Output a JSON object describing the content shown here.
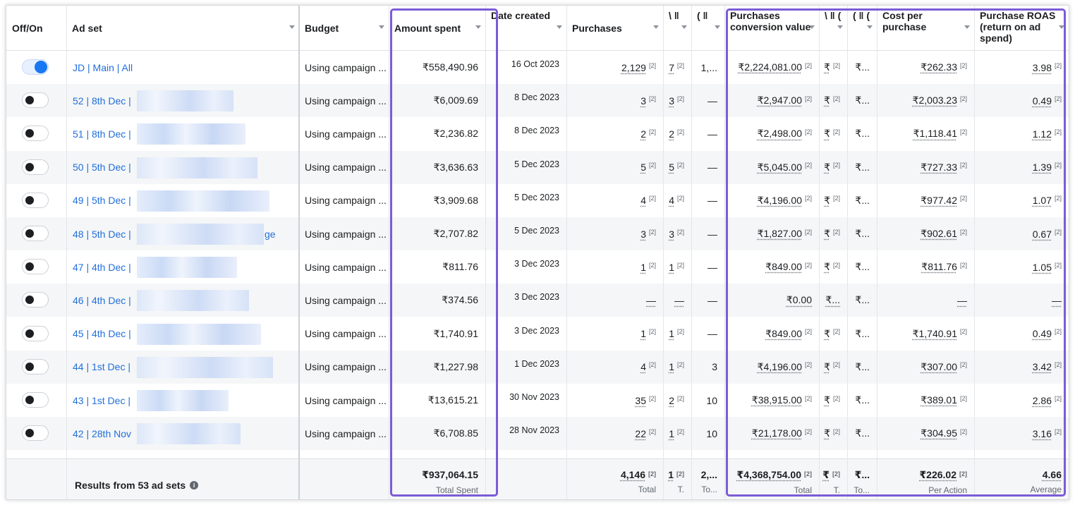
{
  "colors": {
    "accent": "#1877f2",
    "link": "#216fdb",
    "highlight": "#7b5cd6"
  },
  "headers": {
    "toggle": "Off/On",
    "ad_set": "Ad set",
    "budget": "Budget",
    "amount_spent": "Amount spent",
    "date_created": "Date created",
    "purchases": "Purchases",
    "col_a": "\\ ‖",
    "col_b": "( ‖",
    "pcv": "Purchases conversion value",
    "col_c": "\\ ‖ (",
    "col_d": "( ‖ (",
    "cpp": "Cost per purchase",
    "roas": "Purchase ROAS (return on ad spend)"
  },
  "rows": [
    {
      "on": true,
      "name": "JD | Main | All",
      "budget": "Using campaign ...",
      "spent": "₹558,490.96",
      "date": "16 Oct 2023",
      "purchases": "2,129",
      "a": "7",
      "b": "1,...",
      "pcv": "₹2,224,081.00",
      "c": "₹",
      "d": "₹...",
      "cpp": "₹262.33",
      "roas": "3.98"
    },
    {
      "on": false,
      "name": "52 | 8th Dec |",
      "budget": "Using campaign ...",
      "spent": "₹6,009.69",
      "date": "8 Dec 2023",
      "purchases": "3",
      "a": "3",
      "b": "—",
      "pcv": "₹2,947.00",
      "c": "₹",
      "d": "₹...",
      "cpp": "₹2,003.23",
      "roas": "0.49"
    },
    {
      "on": false,
      "name": "51 | 8th Dec |",
      "budget": "Using campaign ...",
      "spent": "₹2,236.82",
      "date": "8 Dec 2023",
      "purchases": "2",
      "a": "2",
      "b": "—",
      "pcv": "₹2,498.00",
      "c": "₹",
      "d": "₹...",
      "cpp": "₹1,118.41",
      "roas": "1.12"
    },
    {
      "on": false,
      "name": "50 | 5th Dec |",
      "budget": "Using campaign ...",
      "spent": "₹3,636.63",
      "date": "5 Dec 2023",
      "purchases": "5",
      "a": "5",
      "b": "—",
      "pcv": "₹5,045.00",
      "c": "₹",
      "d": "₹...",
      "cpp": "₹727.33",
      "roas": "1.39"
    },
    {
      "on": false,
      "name": "49 | 5th Dec |",
      "budget": "Using campaign ...",
      "spent": "₹3,909.68",
      "date": "5 Dec 2023",
      "purchases": "4",
      "a": "4",
      "b": "—",
      "pcv": "₹4,196.00",
      "c": "₹",
      "d": "₹...",
      "cpp": "₹977.42",
      "roas": "1.07"
    },
    {
      "on": false,
      "name": "48 | 5th Dec |",
      "suffix": "ge",
      "budget": "Using campaign ...",
      "spent": "₹2,707.82",
      "date": "5 Dec 2023",
      "purchases": "3",
      "a": "3",
      "b": "—",
      "pcv": "₹1,827.00",
      "c": "₹",
      "d": "₹...",
      "cpp": "₹902.61",
      "roas": "0.67"
    },
    {
      "on": false,
      "name": "47 | 4th Dec |",
      "budget": "Using campaign ...",
      "spent": "₹811.76",
      "date": "3 Dec 2023",
      "purchases": "1",
      "a": "1",
      "b": "—",
      "pcv": "₹849.00",
      "c": "₹",
      "d": "₹...",
      "cpp": "₹811.76",
      "roas": "1.05"
    },
    {
      "on": false,
      "name": "46 | 4th Dec |",
      "budget": "Using campaign ...",
      "spent": "₹374.56",
      "date": "3 Dec 2023",
      "purchases": "—",
      "a": "—",
      "b": "—",
      "pcv": "₹0.00",
      "c": "₹...",
      "d": "₹...",
      "cpp": "—",
      "roas": "—"
    },
    {
      "on": false,
      "name": "45 | 4th Dec |",
      "budget": "Using campaign ...",
      "spent": "₹1,740.91",
      "date": "3 Dec 2023",
      "purchases": "1",
      "a": "1",
      "b": "—",
      "pcv": "₹849.00",
      "c": "₹",
      "d": "₹...",
      "cpp": "₹1,740.91",
      "roas": "0.49"
    },
    {
      "on": false,
      "name": "44 | 1st Dec |",
      "budget": "Using campaign ...",
      "spent": "₹1,227.98",
      "date": "1 Dec 2023",
      "purchases": "4",
      "a": "1",
      "b": "3",
      "pcv": "₹4,196.00",
      "c": "₹",
      "d": "₹...",
      "cpp": "₹307.00",
      "roas": "3.42"
    },
    {
      "on": false,
      "name": "43 | 1st Dec |",
      "budget": "Using campaign ...",
      "spent": "₹13,615.21",
      "date": "30 Nov 2023",
      "purchases": "35",
      "a": "2",
      "b": "10",
      "pcv": "₹38,915.00",
      "c": "₹",
      "d": "₹...",
      "cpp": "₹389.01",
      "roas": "2.86"
    },
    {
      "on": false,
      "name": "42 | 28th Nov",
      "budget": "Using campaign ...",
      "spent": "₹6,708.85",
      "date": "28 Nov 2023",
      "purchases": "22",
      "a": "1",
      "b": "10",
      "pcv": "₹21,178.00",
      "c": "₹",
      "d": "₹...",
      "cpp": "₹304.95",
      "roas": "3.16"
    }
  ],
  "footnote": "[2]",
  "footer": {
    "label": "Results from 53 ad sets",
    "spent": "₹937,064.15",
    "spent_sub": "Total Spent",
    "purchases": "4,146",
    "purchases_sub": "Total",
    "a": "1",
    "a_sub": "T.",
    "b": "2,...",
    "b_sub": "To...",
    "pcv": "₹4,368,754.00",
    "pcv_sub": "Total",
    "c": "₹",
    "c_sub": "T.",
    "d": "₹...",
    "d_sub": "To...",
    "cpp": "₹226.02",
    "cpp_sub": "Per Action",
    "roas": "4.66",
    "roas_sub": "Average"
  }
}
